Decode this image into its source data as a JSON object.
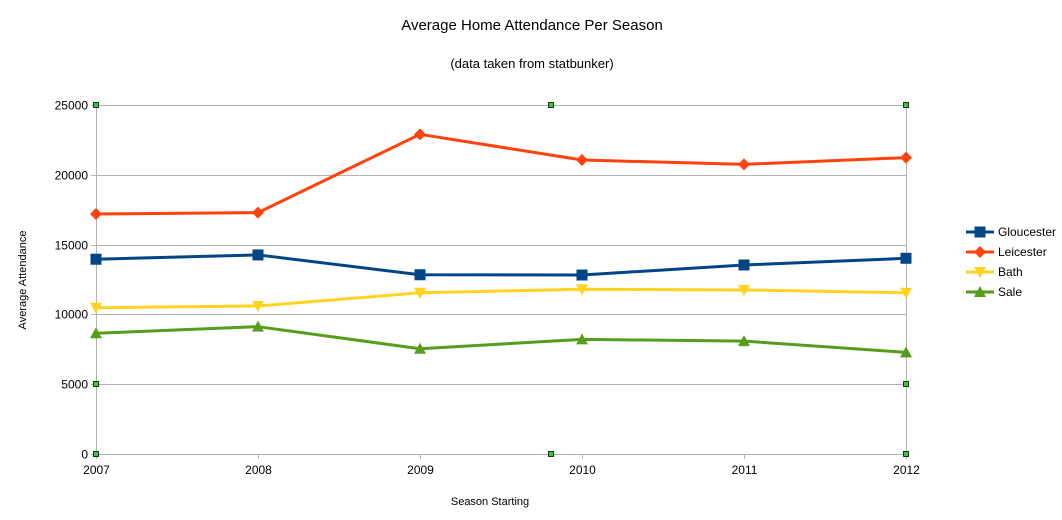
{
  "chart_data": {
    "type": "line",
    "title": "Average Home Attendance Per Season",
    "subtitle": "(data taken from statbunker)",
    "xlabel": "Season Starting",
    "ylabel": "Average Attendance",
    "categories": [
      "2007",
      "2008",
      "2009",
      "2010",
      "2011",
      "2012"
    ],
    "ylim": [
      0,
      25000
    ],
    "yticks": [
      0,
      5000,
      10000,
      15000,
      20000,
      25000
    ],
    "grid": true,
    "legend_position": "right",
    "series": [
      {
        "name": "Gloucester",
        "color": "#004586",
        "marker": "square",
        "values": [
          13950,
          14260,
          12840,
          12820,
          13540,
          14020
        ]
      },
      {
        "name": "Leicester",
        "color": "#ff420e",
        "marker": "diamond",
        "values": [
          17190,
          17290,
          22900,
          21060,
          20750,
          21230
        ]
      },
      {
        "name": "Bath",
        "color": "#ffd320",
        "marker": "triangle-down",
        "values": [
          10480,
          10600,
          11550,
          11800,
          11750,
          11550
        ]
      },
      {
        "name": "Sale",
        "color": "#579d1c",
        "marker": "triangle-up",
        "values": [
          8650,
          9120,
          7540,
          8210,
          8090,
          7280
        ]
      }
    ]
  }
}
